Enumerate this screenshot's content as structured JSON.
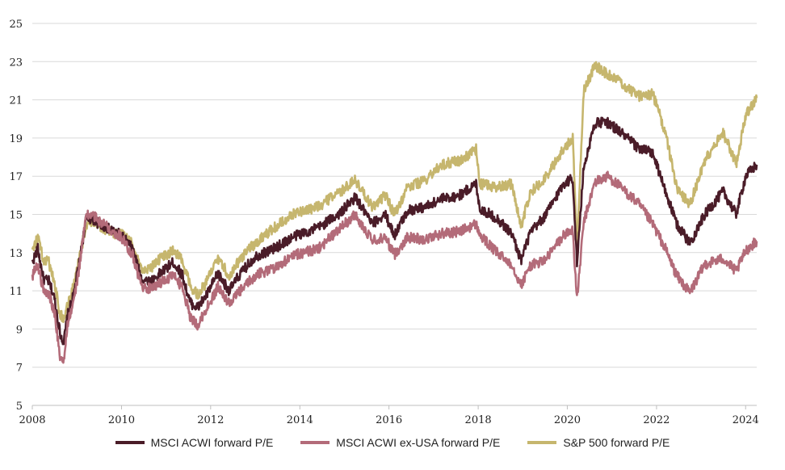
{
  "chart_data": {
    "type": "line",
    "ylim": [
      5,
      25
    ],
    "xlim": [
      "2008-01-01",
      "2024-04-01"
    ],
    "yticks": [
      5,
      7,
      9,
      11,
      13,
      15,
      17,
      19,
      21,
      23,
      25
    ],
    "xticks": [
      "2008",
      "2010",
      "2012",
      "2014",
      "2016",
      "2018",
      "2020",
      "2022",
      "2024"
    ],
    "grid": "horizontal",
    "legend_position": "bottom",
    "series": [
      {
        "name": "MSCI ACWI forward P/E",
        "color": "#4a1c28",
        "points": [
          [
            "2008-01-01",
            12.5
          ],
          [
            "2008-02-15",
            13.2
          ],
          [
            "2008-04-01",
            11.6
          ],
          [
            "2008-05-15",
            11.5
          ],
          [
            "2008-07-01",
            10.6
          ],
          [
            "2008-08-15",
            8.8
          ],
          [
            "2008-09-15",
            8.3
          ],
          [
            "2008-10-15",
            9.7
          ],
          [
            "2008-12-01",
            10.7
          ],
          [
            "2009-01-15",
            12.3
          ],
          [
            "2009-03-15",
            14.7
          ],
          [
            "2009-05-01",
            14.8
          ],
          [
            "2009-07-01",
            14.5
          ],
          [
            "2009-09-01",
            14.3
          ],
          [
            "2009-11-01",
            14.1
          ],
          [
            "2010-01-01",
            13.9
          ],
          [
            "2010-04-01",
            13.2
          ],
          [
            "2010-06-15",
            11.6
          ],
          [
            "2010-09-01",
            11.5
          ],
          [
            "2010-12-01",
            12.0
          ],
          [
            "2011-03-01",
            12.5
          ],
          [
            "2011-05-15",
            11.8
          ],
          [
            "2011-07-15",
            10.4
          ],
          [
            "2011-09-15",
            10.1
          ],
          [
            "2011-12-01",
            10.8
          ],
          [
            "2012-03-01",
            11.9
          ],
          [
            "2012-06-01",
            11.0
          ],
          [
            "2012-09-01",
            11.9
          ],
          [
            "2013-01-01",
            12.8
          ],
          [
            "2013-06-01",
            13.2
          ],
          [
            "2013-12-01",
            13.9
          ],
          [
            "2014-06-01",
            14.3
          ],
          [
            "2014-12-01",
            15.1
          ],
          [
            "2015-04-01",
            15.9
          ],
          [
            "2015-08-15",
            14.5
          ],
          [
            "2015-12-01",
            15.0
          ],
          [
            "2016-02-15",
            13.9
          ],
          [
            "2016-06-01",
            15.2
          ],
          [
            "2016-11-01",
            15.4
          ],
          [
            "2017-03-01",
            15.8
          ],
          [
            "2017-08-01",
            16.0
          ],
          [
            "2017-12-15",
            16.6
          ],
          [
            "2018-01-15",
            15.3
          ],
          [
            "2018-06-01",
            14.8
          ],
          [
            "2018-10-01",
            14.0
          ],
          [
            "2018-12-20",
            12.6
          ],
          [
            "2019-03-01",
            14.0
          ],
          [
            "2019-07-01",
            14.9
          ],
          [
            "2019-12-01",
            16.6
          ],
          [
            "2020-02-15",
            16.9
          ],
          [
            "2020-03-20",
            12.4
          ],
          [
            "2020-05-15",
            17.5
          ],
          [
            "2020-08-15",
            19.8
          ],
          [
            "2020-12-01",
            19.8
          ],
          [
            "2021-03-15",
            19.3
          ],
          [
            "2021-08-01",
            18.5
          ],
          [
            "2021-12-01",
            18.2
          ],
          [
            "2022-03-15",
            16.2
          ],
          [
            "2022-06-15",
            14.5
          ],
          [
            "2022-10-01",
            13.5
          ],
          [
            "2023-02-01",
            15.0
          ],
          [
            "2023-07-01",
            16.2
          ],
          [
            "2023-10-15",
            15.0
          ],
          [
            "2024-01-01",
            17.0
          ],
          [
            "2024-04-01",
            17.6
          ]
        ]
      },
      {
        "name": "MSCI ACWI ex-USA forward P/E",
        "color": "#b36b79",
        "points": [
          [
            "2008-01-01",
            11.8
          ],
          [
            "2008-02-15",
            12.4
          ],
          [
            "2008-04-01",
            11.0
          ],
          [
            "2008-05-15",
            10.8
          ],
          [
            "2008-07-01",
            9.9
          ],
          [
            "2008-08-15",
            7.6
          ],
          [
            "2008-09-15",
            7.2
          ],
          [
            "2008-10-15",
            9.3
          ],
          [
            "2008-12-01",
            10.3
          ],
          [
            "2009-01-15",
            12.0
          ],
          [
            "2009-03-15",
            14.9
          ],
          [
            "2009-05-01",
            15.0
          ],
          [
            "2009-07-01",
            14.7
          ],
          [
            "2009-09-01",
            14.4
          ],
          [
            "2009-11-01",
            14.1
          ],
          [
            "2010-01-01",
            13.8
          ],
          [
            "2010-04-01",
            12.9
          ],
          [
            "2010-06-15",
            11.2
          ],
          [
            "2010-09-01",
            11.1
          ],
          [
            "2010-12-01",
            11.5
          ],
          [
            "2011-03-01",
            11.8
          ],
          [
            "2011-05-15",
            11.2
          ],
          [
            "2011-07-15",
            9.7
          ],
          [
            "2011-09-15",
            9.2
          ],
          [
            "2011-12-01",
            10.1
          ],
          [
            "2012-03-01",
            11.2
          ],
          [
            "2012-06-01",
            10.3
          ],
          [
            "2012-09-01",
            11.0
          ],
          [
            "2013-01-01",
            11.8
          ],
          [
            "2013-06-01",
            12.2
          ],
          [
            "2013-12-01",
            12.9
          ],
          [
            "2014-06-01",
            13.2
          ],
          [
            "2014-12-01",
            14.3
          ],
          [
            "2015-04-01",
            15.0
          ],
          [
            "2015-08-15",
            13.6
          ],
          [
            "2015-12-01",
            13.8
          ],
          [
            "2016-02-15",
            12.9
          ],
          [
            "2016-06-01",
            13.8
          ],
          [
            "2016-11-01",
            13.7
          ],
          [
            "2017-03-01",
            14.0
          ],
          [
            "2017-08-01",
            14.1
          ],
          [
            "2017-12-15",
            14.5
          ],
          [
            "2018-01-15",
            13.9
          ],
          [
            "2018-06-01",
            13.0
          ],
          [
            "2018-10-01",
            12.4
          ],
          [
            "2018-12-20",
            11.3
          ],
          [
            "2019-03-01",
            12.3
          ],
          [
            "2019-07-01",
            12.6
          ],
          [
            "2019-12-01",
            13.9
          ],
          [
            "2020-02-15",
            14.2
          ],
          [
            "2020-03-20",
            10.5
          ],
          [
            "2020-05-15",
            14.6
          ],
          [
            "2020-08-15",
            16.7
          ],
          [
            "2020-12-01",
            17.0
          ],
          [
            "2021-03-15",
            16.4
          ],
          [
            "2021-08-01",
            15.6
          ],
          [
            "2021-12-01",
            14.5
          ],
          [
            "2022-03-15",
            13.2
          ],
          [
            "2022-06-15",
            11.8
          ],
          [
            "2022-10-01",
            10.9
          ],
          [
            "2023-02-01",
            12.4
          ],
          [
            "2023-07-01",
            12.7
          ],
          [
            "2023-10-15",
            12.0
          ],
          [
            "2024-01-01",
            13.1
          ],
          [
            "2024-04-01",
            13.6
          ]
        ]
      },
      {
        "name": "S&P 500 forward P/E",
        "color": "#c6b66e",
        "points": [
          [
            "2008-01-01",
            13.2
          ],
          [
            "2008-02-15",
            13.8
          ],
          [
            "2008-04-01",
            12.6
          ],
          [
            "2008-05-15",
            12.5
          ],
          [
            "2008-07-01",
            11.4
          ],
          [
            "2008-08-15",
            9.8
          ],
          [
            "2008-09-15",
            9.5
          ],
          [
            "2008-10-15",
            10.2
          ],
          [
            "2008-12-01",
            11.2
          ],
          [
            "2009-01-15",
            12.5
          ],
          [
            "2009-03-15",
            14.4
          ],
          [
            "2009-05-01",
            14.6
          ],
          [
            "2009-07-01",
            14.4
          ],
          [
            "2009-09-01",
            14.2
          ],
          [
            "2009-11-01",
            14.0
          ],
          [
            "2010-01-01",
            14.0
          ],
          [
            "2010-04-01",
            13.5
          ],
          [
            "2010-06-15",
            12.1
          ],
          [
            "2010-09-01",
            12.2
          ],
          [
            "2010-12-01",
            12.8
          ],
          [
            "2011-03-01",
            13.1
          ],
          [
            "2011-05-15",
            12.6
          ],
          [
            "2011-07-15",
            11.3
          ],
          [
            "2011-09-15",
            10.8
          ],
          [
            "2011-12-01",
            11.5
          ],
          [
            "2012-03-01",
            12.7
          ],
          [
            "2012-06-01",
            11.8
          ],
          [
            "2012-09-01",
            12.7
          ],
          [
            "2013-01-01",
            13.5
          ],
          [
            "2013-06-01",
            14.3
          ],
          [
            "2013-12-01",
            15.1
          ],
          [
            "2014-06-01",
            15.4
          ],
          [
            "2014-12-01",
            16.2
          ],
          [
            "2015-04-01",
            16.8
          ],
          [
            "2015-08-15",
            15.4
          ],
          [
            "2015-12-01",
            16.0
          ],
          [
            "2016-02-15",
            15.0
          ],
          [
            "2016-06-01",
            16.4
          ],
          [
            "2016-11-01",
            16.8
          ],
          [
            "2017-03-01",
            17.6
          ],
          [
            "2017-08-01",
            17.8
          ],
          [
            "2017-12-15",
            18.4
          ],
          [
            "2018-01-15",
            16.6
          ],
          [
            "2018-06-01",
            16.4
          ],
          [
            "2018-10-01",
            16.6
          ],
          [
            "2018-12-20",
            14.4
          ],
          [
            "2019-03-01",
            16.1
          ],
          [
            "2019-07-01",
            16.9
          ],
          [
            "2019-12-01",
            18.4
          ],
          [
            "2020-02-15",
            19.0
          ],
          [
            "2020-03-20",
            13.3
          ],
          [
            "2020-05-15",
            21.5
          ],
          [
            "2020-08-15",
            22.8
          ],
          [
            "2020-12-01",
            22.3
          ],
          [
            "2021-03-15",
            21.9
          ],
          [
            "2021-08-01",
            21.2
          ],
          [
            "2021-12-01",
            21.3
          ],
          [
            "2022-03-15",
            19.3
          ],
          [
            "2022-06-15",
            16.4
          ],
          [
            "2022-10-01",
            15.5
          ],
          [
            "2023-02-01",
            17.8
          ],
          [
            "2023-07-01",
            19.3
          ],
          [
            "2023-10-15",
            17.6
          ],
          [
            "2024-01-01",
            20.2
          ],
          [
            "2024-04-01",
            21.1
          ]
        ]
      }
    ]
  }
}
